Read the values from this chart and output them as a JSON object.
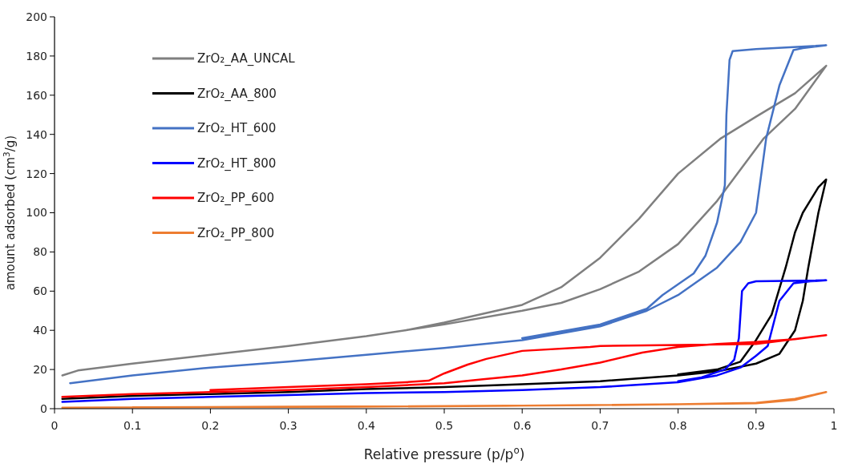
{
  "chart_data": {
    "type": "line",
    "xlabel": "Relative pressure (p/p$^{o}$)",
    "ylabel": "amount adsorbed (cm$^{3}$/g)",
    "xlim": [
      0,
      1
    ],
    "ylim": [
      0,
      200
    ],
    "xticks": [
      0,
      0.1,
      0.2,
      0.3,
      0.4,
      0.5,
      0.6,
      0.7,
      0.8,
      0.9,
      1
    ],
    "yticks": [
      0,
      20,
      40,
      60,
      80,
      100,
      120,
      140,
      160,
      180,
      200
    ],
    "grid": false,
    "legend": "top left",
    "marker": "none",
    "line_style": "solid",
    "series": [
      {
        "name": "ZrO₂_AA_UNCAL",
        "color": "#7f7f7f",
        "x": [
          0.01,
          0.03,
          0.1,
          0.2,
          0.3,
          0.4,
          0.5,
          0.6,
          0.65,
          0.7,
          0.75,
          0.8,
          0.85,
          0.91,
          0.95,
          0.99,
          0.95,
          0.9,
          0.855,
          0.8,
          0.75,
          0.72,
          0.7,
          0.65,
          0.6,
          0.5,
          0.45
        ],
        "values": [
          17,
          19.5,
          23,
          27.5,
          32,
          37,
          43,
          50,
          54,
          61,
          70,
          84,
          106,
          138,
          153,
          175,
          161,
          149,
          138,
          120,
          97,
          85,
          77,
          62,
          53,
          44,
          40
        ]
      },
      {
        "name": "ZrO₂_AA_800",
        "color": "#000000",
        "x": [
          0.01,
          0.1,
          0.2,
          0.3,
          0.4,
          0.5,
          0.6,
          0.7,
          0.8,
          0.85,
          0.9,
          0.93,
          0.95,
          0.96,
          0.967,
          0.98,
          0.99,
          0.98,
          0.96,
          0.95,
          0.938,
          0.92,
          0.9,
          0.88,
          0.85,
          0.8
        ],
        "values": [
          5,
          6.5,
          7.5,
          8.5,
          10,
          11,
          12.5,
          14,
          17,
          19,
          23,
          28,
          40,
          55,
          72,
          100,
          117,
          113,
          100,
          90,
          72,
          48,
          35,
          24,
          20,
          17.5
        ]
      },
      {
        "name": "ZrO₂_HT_600",
        "color": "#4472c4",
        "x": [
          0.02,
          0.1,
          0.2,
          0.3,
          0.4,
          0.5,
          0.6,
          0.7,
          0.76,
          0.8,
          0.85,
          0.88,
          0.9,
          0.913,
          0.93,
          0.948,
          0.96,
          0.99,
          0.9,
          0.87,
          0.866,
          0.862,
          0.86,
          0.85,
          0.835,
          0.82,
          0.78,
          0.76,
          0.7,
          0.6
        ],
        "values": [
          13,
          17,
          21,
          24,
          27.5,
          31,
          35,
          42,
          50,
          58,
          72,
          85,
          100,
          138,
          165,
          183,
          184,
          185.5,
          183.5,
          182.5,
          178,
          150,
          114,
          95,
          78,
          69,
          58,
          51,
          43,
          36
        ]
      },
      {
        "name": "ZrO₂_HT_800",
        "color": "#0000ff",
        "x": [
          0.01,
          0.1,
          0.2,
          0.3,
          0.4,
          0.5,
          0.6,
          0.7,
          0.8,
          0.85,
          0.88,
          0.9,
          0.915,
          0.93,
          0.948,
          0.97,
          0.99,
          0.9,
          0.89,
          0.882,
          0.878,
          0.872,
          0.86,
          0.83,
          0.8
        ],
        "values": [
          3.5,
          5,
          6,
          7,
          8,
          8.5,
          9.5,
          11,
          13.5,
          17,
          21,
          27,
          32,
          55,
          64,
          65,
          65.5,
          65,
          64,
          60,
          36,
          25,
          20,
          16,
          14
        ]
      },
      {
        "name": "ZrO₂_PP_600",
        "color": "#ff0000",
        "x": [
          0.01,
          0.1,
          0.2,
          0.3,
          0.4,
          0.5,
          0.55,
          0.6,
          0.65,
          0.7,
          0.754,
          0.8,
          0.85,
          0.9,
          0.95,
          0.99,
          0.9,
          0.8,
          0.7,
          0.687,
          0.6,
          0.554,
          0.53,
          0.5,
          0.48,
          0.45,
          0.4,
          0.3,
          0.2
        ],
        "values": [
          6,
          7.5,
          8.5,
          9.5,
          11,
          13,
          15,
          17,
          20,
          23.5,
          28.6,
          31.5,
          33,
          34,
          35.5,
          37.5,
          33,
          32.5,
          32,
          31.5,
          29.5,
          25.4,
          22.5,
          18,
          14.3,
          13.5,
          12.5,
          11,
          9.5
        ]
      },
      {
        "name": "ZrO₂_PP_800",
        "color": "#ed7d31",
        "x": [
          0.01,
          0.2,
          0.4,
          0.6,
          0.8,
          0.9,
          0.95,
          0.99,
          0.95,
          0.9,
          0.7,
          0.5,
          0.3,
          0.1
        ],
        "values": [
          0.5,
          0.8,
          1,
          1.5,
          2.2,
          3,
          5,
          8.5,
          4.5,
          2.8,
          1.8,
          1.3,
          1,
          0.7
        ]
      }
    ]
  }
}
